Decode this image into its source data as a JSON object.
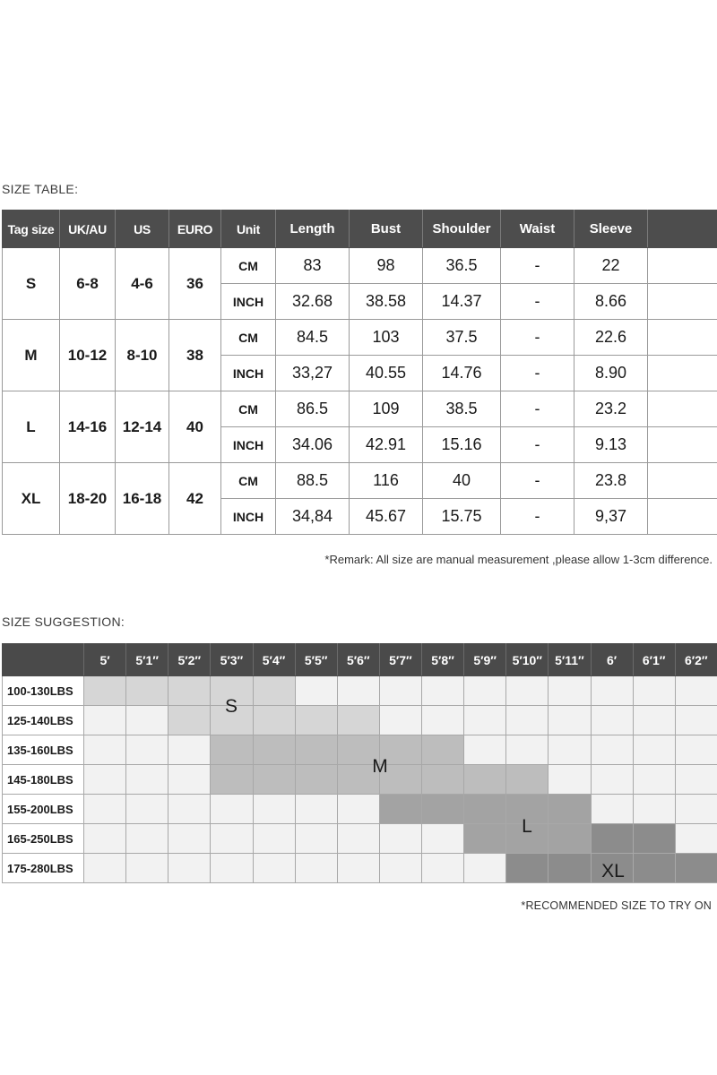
{
  "size_table": {
    "title": "SIZE TABLE:",
    "headers": [
      "Tag size",
      "UK/AU",
      "US",
      "EURO",
      "Unit",
      "Length",
      "Bust",
      "Shoulder",
      "Waist",
      "Sleeve",
      ""
    ],
    "groups": [
      {
        "tag": "S",
        "uk": "6-8",
        "us": "4-6",
        "euro": "36",
        "cm": {
          "unit": "CM",
          "length": "83",
          "bust": "98",
          "shoulder": "36.5",
          "waist": "-",
          "sleeve": "22"
        },
        "inch": {
          "unit": "INCH",
          "length": "32.68",
          "bust": "38.58",
          "shoulder": "14.37",
          "waist": "-",
          "sleeve": "8.66"
        }
      },
      {
        "tag": "M",
        "uk": "10-12",
        "us": "8-10",
        "euro": "38",
        "cm": {
          "unit": "CM",
          "length": "84.5",
          "bust": "103",
          "shoulder": "37.5",
          "waist": "-",
          "sleeve": "22.6"
        },
        "inch": {
          "unit": "INCH",
          "length": "33,27",
          "bust": "40.55",
          "shoulder": "14.76",
          "waist": "-",
          "sleeve": "8.90"
        }
      },
      {
        "tag": "L",
        "uk": "14-16",
        "us": "12-14",
        "euro": "40",
        "cm": {
          "unit": "CM",
          "length": "86.5",
          "bust": "109",
          "shoulder": "38.5",
          "waist": "-",
          "sleeve": "23.2"
        },
        "inch": {
          "unit": "INCH",
          "length": "34.06",
          "bust": "42.91",
          "shoulder": "15.16",
          "waist": "-",
          "sleeve": "9.13"
        }
      },
      {
        "tag": "XL",
        "uk": "18-20",
        "us": "16-18",
        "euro": "42",
        "cm": {
          "unit": "CM",
          "length": "88.5",
          "bust": "116",
          "shoulder": "40",
          "waist": "-",
          "sleeve": "23.8"
        },
        "inch": {
          "unit": "INCH",
          "length": "34,84",
          "bust": "45.67",
          "shoulder": "15.75",
          "waist": "-",
          "sleeve": "9,37"
        }
      }
    ],
    "remark": "*Remark: All size are manual measurement ,please allow 1-3cm difference."
  },
  "size_suggestion": {
    "title": "SIZE SUGGESTION:",
    "heights": [
      "5′",
      "5′1″",
      "5′2″",
      "5′3″",
      "5′4″",
      "5′5″",
      "5′6″",
      "5′7″",
      "5′8″",
      "5′9″",
      "5′10″",
      "5′11″",
      "6′",
      "6′1″",
      "6′2″"
    ],
    "rows": [
      {
        "weight": "100-130LBS",
        "cells": [
          "s",
          "s",
          "s",
          "s",
          "s",
          "",
          "",
          "",
          "",
          "",
          "",
          "",
          "",
          "",
          ""
        ]
      },
      {
        "weight": "125-140LBS",
        "cells": [
          "",
          "",
          "s",
          "s",
          "s",
          "s",
          "s",
          "",
          "",
          "",
          "",
          "",
          "",
          "",
          ""
        ]
      },
      {
        "weight": "135-160LBS",
        "cells": [
          "",
          "",
          "",
          "m",
          "m",
          "m",
          "m",
          "m",
          "m",
          "",
          "",
          "",
          "",
          "",
          ""
        ]
      },
      {
        "weight": "145-180LBS",
        "cells": [
          "",
          "",
          "",
          "m",
          "m",
          "m",
          "m",
          "m",
          "m",
          "m",
          "m",
          "",
          "",
          "",
          ""
        ]
      },
      {
        "weight": "155-200LBS",
        "cells": [
          "",
          "",
          "",
          "",
          "",
          "",
          "",
          "l",
          "l",
          "l",
          "l",
          "l",
          "",
          "",
          ""
        ]
      },
      {
        "weight": "165-250LBS",
        "cells": [
          "",
          "",
          "",
          "",
          "",
          "",
          "",
          "",
          "",
          "l",
          "l",
          "l",
          "xl",
          "xl",
          ""
        ]
      },
      {
        "weight": "175-280LBS",
        "cells": [
          "",
          "",
          "",
          "",
          "",
          "",
          "",
          "",
          "",
          "",
          "xl",
          "xl",
          "xl",
          "xl",
          "xl"
        ]
      }
    ],
    "zone_labels": {
      "s": "S",
      "m": "M",
      "l": "L",
      "xl": "XL"
    },
    "note": "*RECOMMENDED SIZE TO TRY ON"
  }
}
